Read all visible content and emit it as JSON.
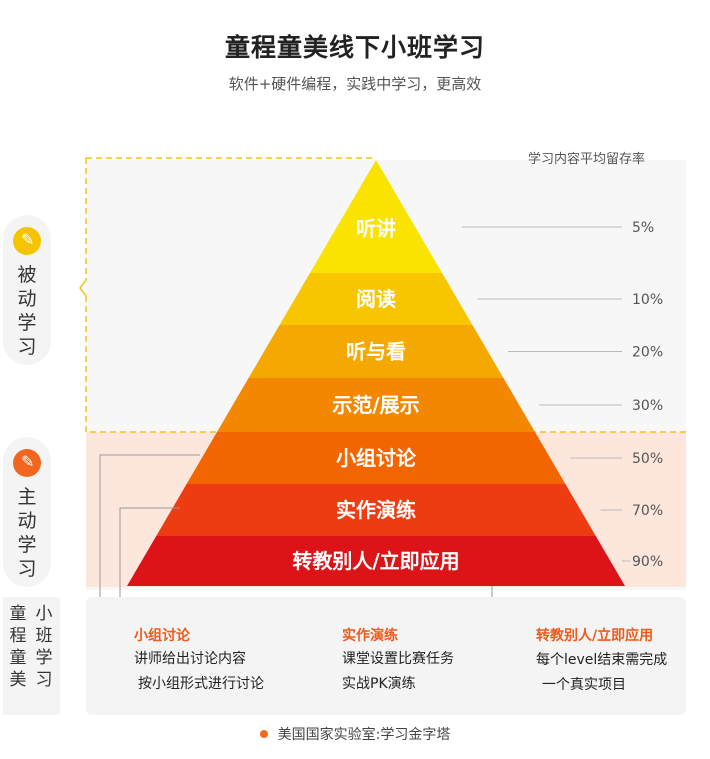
{
  "header": {
    "title": "童程童美线下小班学习",
    "subtitle": "软件+硬件编程，实践中学习，更高效"
  },
  "retention_label": "学习内容平均留存率",
  "colors": {
    "passive_icon": "#f5c400",
    "active_icon": "#f3661f",
    "active_band": "#fde6dc",
    "passive_dashed": "#f0c419",
    "accent_text": "#f05a1a"
  },
  "side_labels": {
    "passive": {
      "icon": "pencil-icon",
      "text": [
        "被",
        "动",
        "学",
        "习"
      ]
    },
    "active": {
      "icon": "pencil-icon",
      "text": [
        "主",
        "动",
        "学",
        "习"
      ]
    },
    "brand": {
      "col1": [
        "小",
        "班",
        "学",
        "习"
      ],
      "col2": [
        "童",
        "程",
        "童",
        "美"
      ]
    }
  },
  "pyramid": [
    {
      "label": "听讲",
      "percent": "5%",
      "color": "#fbe300"
    },
    {
      "label": "阅读",
      "percent": "10%",
      "color": "#f7c600"
    },
    {
      "label": "听与看",
      "percent": "20%",
      "color": "#f4a800"
    },
    {
      "label": "示范/展示",
      "percent": "30%",
      "color": "#f48700"
    },
    {
      "label": "小组讨论",
      "percent": "50%",
      "color": "#f26500"
    },
    {
      "label": "实作演练",
      "percent": "70%",
      "color": "#ee3c12"
    },
    {
      "label": "转教别人/立即应用",
      "percent": "90%",
      "color": "#dc1418"
    }
  ],
  "details": [
    {
      "title": "小组讨论",
      "lines": [
        "讲师给出讨论内容",
        "按小组形式进行讨论"
      ]
    },
    {
      "title": "实作演练",
      "lines": [
        "课堂设置比赛任务",
        "实战PK演练"
      ]
    },
    {
      "title": "转教别人/立即应用",
      "lines": [
        "每个level结束需完成",
        "一个真实项目"
      ]
    }
  ],
  "footer": "美国国家实验室:学习金字塔"
}
